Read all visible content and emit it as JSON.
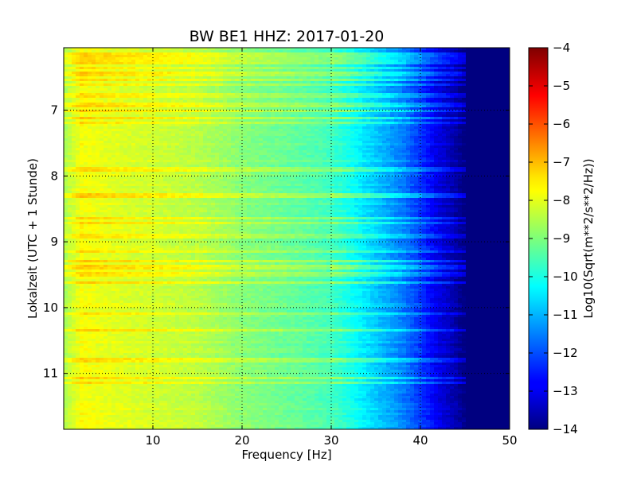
{
  "chart_data": {
    "type": "heatmap",
    "title": "BW BE1 HHZ: 2017-01-20",
    "xlabel": "Frequency [Hz]",
    "ylabel": "Lokalzeit (UTC + 1 Stunde)",
    "xlim": [
      0,
      50
    ],
    "ylim": [
      11.85,
      6.05
    ],
    "y_inverted": true,
    "x_ticks": [
      10,
      20,
      30,
      40,
      50
    ],
    "x_tick_labels": [
      "10",
      "20",
      "30",
      "40",
      "50"
    ],
    "y_ticks": [
      7,
      8,
      9,
      10,
      11
    ],
    "y_tick_labels": [
      "7",
      "8",
      "9",
      "10",
      "11"
    ],
    "grid": true,
    "colorbar": {
      "label": "Log10(Sqrt(m**2/s**2/Hz))",
      "range": [
        -14,
        -4
      ],
      "ticks": [
        -4,
        -5,
        -6,
        -7,
        -8,
        -9,
        -10,
        -11,
        -12,
        -13,
        -14
      ],
      "tick_labels": [
        "−4",
        "−5",
        "−6",
        "−7",
        "−8",
        "−9",
        "−10",
        "−11",
        "−12",
        "−13",
        "−14"
      ],
      "colormap": "jet"
    },
    "spectral_profile": {
      "frequency_hz": [
        0,
        2,
        5,
        10,
        15,
        20,
        25,
        28,
        30,
        32,
        34,
        36,
        38,
        40,
        42,
        44,
        45,
        50
      ],
      "log10_psd": [
        -8.6,
        -7.8,
        -8.0,
        -8.2,
        -8.4,
        -8.9,
        -9.2,
        -9.4,
        -9.6,
        -10.0,
        -10.5,
        -11.0,
        -11.5,
        -12.2,
        -13.0,
        -13.6,
        -14.0,
        -14.0
      ]
    },
    "high_noise_times": [
      6.15,
      6.2,
      6.27,
      6.35,
      6.45,
      6.55,
      6.62,
      6.78,
      6.92,
      7.02,
      7.12,
      7.2,
      7.9,
      8.3,
      8.65,
      8.72,
      8.92,
      9.15,
      9.3,
      9.38,
      9.5,
      9.62,
      10.1,
      10.35,
      10.8,
      11.07,
      11.15
    ]
  }
}
